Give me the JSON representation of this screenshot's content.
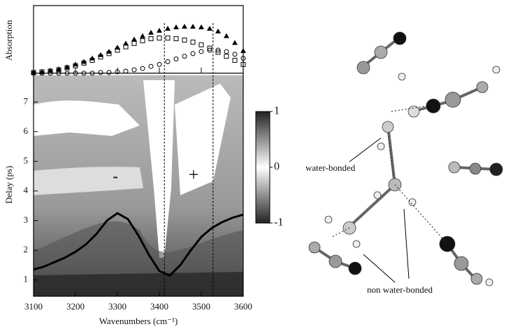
{
  "chart_data": [
    {
      "type": "scatter",
      "ylabel": "Absorption",
      "xlim": [
        3100,
        3600
      ],
      "ylim": [
        0,
        1
      ],
      "x": [
        3100,
        3120,
        3140,
        3160,
        3180,
        3200,
        3220,
        3240,
        3260,
        3280,
        3300,
        3320,
        3340,
        3360,
        3380,
        3400,
        3420,
        3440,
        3460,
        3480,
        3500,
        3520,
        3540,
        3560,
        3580,
        3600
      ],
      "series": [
        {
          "marker": "triangle",
          "color": "#000000",
          "values": [
            0.01,
            0.02,
            0.04,
            0.06,
            0.09,
            0.13,
            0.17,
            0.22,
            0.27,
            0.32,
            0.38,
            0.44,
            0.5,
            0.55,
            0.6,
            0.63,
            0.66,
            0.68,
            0.69,
            0.69,
            0.68,
            0.66,
            0.62,
            0.55,
            0.45,
            0.33
          ]
        },
        {
          "marker": "square",
          "color": "#000000",
          "values": [
            0.01,
            0.02,
            0.03,
            0.05,
            0.08,
            0.11,
            0.15,
            0.19,
            0.24,
            0.29,
            0.34,
            0.39,
            0.44,
            0.48,
            0.51,
            0.52,
            0.52,
            0.51,
            0.49,
            0.46,
            0.42,
            0.37,
            0.31,
            0.25,
            0.19,
            0.13
          ]
        },
        {
          "marker": "circle",
          "color": "#000000",
          "values": [
            0,
            0,
            0,
            0,
            0,
            0,
            0,
            0,
            0.01,
            0.01,
            0.02,
            0.03,
            0.05,
            0.07,
            0.1,
            0.13,
            0.17,
            0.21,
            0.25,
            0.29,
            0.32,
            0.34,
            0.34,
            0.32,
            0.28,
            0.22
          ]
        }
      ],
      "vlines": [
        3412,
        3528
      ]
    },
    {
      "type": "contour",
      "xlabel": "Wavenumbers (cm⁻¹)",
      "ylabel": "Delay (ps)",
      "xlim": [
        3100,
        3600
      ],
      "ylim": [
        0.45,
        7.9
      ],
      "xticks": [
        3100,
        3200,
        3300,
        3400,
        3500,
        3600
      ],
      "yticks": [
        1,
        2,
        3,
        4,
        5,
        6,
        7
      ],
      "x": [
        3100,
        3125,
        3150,
        3175,
        3200,
        3225,
        3250,
        3275,
        3300,
        3325,
        3350,
        3375,
        3400,
        3425,
        3450,
        3475,
        3500,
        3525,
        3550,
        3575,
        3600
      ],
      "values": [
        1.35,
        1.45,
        1.6,
        1.75,
        1.95,
        2.2,
        2.55,
        3.0,
        3.25,
        3.05,
        2.5,
        1.85,
        1.3,
        1.15,
        1.5,
        2.0,
        2.45,
        2.75,
        2.95,
        3.1,
        3.2
      ],
      "color": "#000000",
      "vlines": [
        3412,
        3528
      ],
      "clim": [
        -1,
        1
      ],
      "cticks": [
        1,
        0,
        -1
      ],
      "annotations": [
        "-",
        "+"
      ]
    }
  ],
  "diagram": {
    "labels": [
      "water-bonded",
      "non water-bonded"
    ]
  }
}
